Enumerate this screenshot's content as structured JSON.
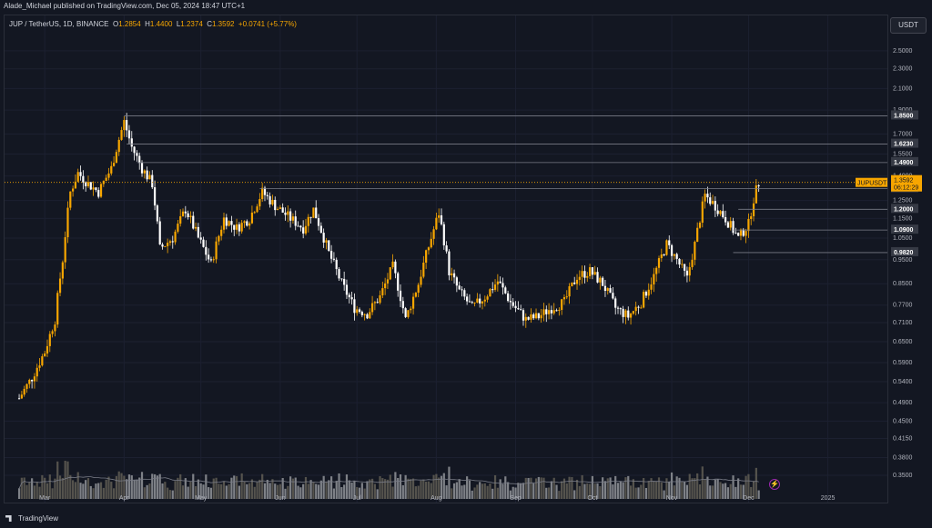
{
  "header": {
    "published": "Alade_Michael published on TradingView.com, Dec 05, 2024 18:47 UTC+1"
  },
  "symbol_bar": {
    "symbol": "JUP / TetherUS, 1D, BINANCE",
    "open_label": "O",
    "open": "1.2854",
    "high_label": "H",
    "high": "1.4400",
    "low_label": "L",
    "low": "1.2374",
    "close_label": "C",
    "close": "1.3592",
    "change": "+0.0741 (+5.77%)"
  },
  "axis": {
    "currency_button": "USDT"
  },
  "price_tag": {
    "symbol": "JUPUSDT",
    "price": "1.3592",
    "countdown": "06:12:29"
  },
  "footer": {
    "brand": "TradingView"
  },
  "colors": {
    "up": "#f7a600",
    "down": "#ffffff",
    "volume_up": "#5d5a52",
    "volume_down": "#8b8d92",
    "hline": "#787b86",
    "bg": "#131722"
  },
  "chart_data": {
    "type": "candlestick",
    "timeframe": "1D",
    "x_tick_labels": [
      "Mar",
      "Apr",
      "May",
      "Jun",
      "Jul",
      "Aug",
      "Sep",
      "Oct",
      "Nov",
      "Dec",
      "2025"
    ],
    "y_tick_labels": [
      "2.5000",
      "2.3000",
      "2.1000",
      "1.9000",
      "1.7000",
      "1.5500",
      "1.4000",
      "1.2500",
      "1.1500",
      "1.0500",
      "0.9500",
      "0.8500",
      "0.7700",
      "0.7100",
      "0.6500",
      "0.5900",
      "0.5400",
      "0.4900",
      "0.4500",
      "0.4150",
      "0.3800",
      "0.3500"
    ],
    "ylim": [
      0.33,
      2.8
    ],
    "y_scale": "log",
    "horizontal_levels": [
      "1.8500",
      "1.6230",
      "1.4900",
      "1.3200",
      "1.2000",
      "1.0900",
      "0.9820"
    ],
    "legend_position": "top-left",
    "grid": true,
    "price_path": [
      {
        "date": "2024-02-20",
        "price": 0.5
      },
      {
        "date": "2024-02-25",
        "price": 0.55
      },
      {
        "date": "2024-03-01",
        "price": 0.62
      },
      {
        "date": "2024-03-05",
        "price": 0.72
      },
      {
        "date": "2024-03-08",
        "price": 0.95
      },
      {
        "date": "2024-03-11",
        "price": 1.3
      },
      {
        "date": "2024-03-14",
        "price": 1.42
      },
      {
        "date": "2024-03-18",
        "price": 1.35
      },
      {
        "date": "2024-03-22",
        "price": 1.3
      },
      {
        "date": "2024-03-27",
        "price": 1.45
      },
      {
        "date": "2024-04-01",
        "price": 1.8
      },
      {
        "date": "2024-04-04",
        "price": 1.6
      },
      {
        "date": "2024-04-08",
        "price": 1.45
      },
      {
        "date": "2024-04-12",
        "price": 1.35
      },
      {
        "date": "2024-04-15",
        "price": 1.0
      },
      {
        "date": "2024-04-20",
        "price": 1.05
      },
      {
        "date": "2024-04-25",
        "price": 1.2
      },
      {
        "date": "2024-04-30",
        "price": 1.05
      },
      {
        "date": "2024-05-05",
        "price": 0.93
      },
      {
        "date": "2024-05-10",
        "price": 1.15
      },
      {
        "date": "2024-05-15",
        "price": 1.1
      },
      {
        "date": "2024-05-20",
        "price": 1.15
      },
      {
        "date": "2024-05-25",
        "price": 1.3
      },
      {
        "date": "2024-05-30",
        "price": 1.22
      },
      {
        "date": "2024-06-05",
        "price": 1.15
      },
      {
        "date": "2024-06-10",
        "price": 1.1
      },
      {
        "date": "2024-06-14",
        "price": 1.2
      },
      {
        "date": "2024-06-20",
        "price": 0.98
      },
      {
        "date": "2024-06-25",
        "price": 0.85
      },
      {
        "date": "2024-06-30",
        "price": 0.76
      },
      {
        "date": "2024-07-05",
        "price": 0.74
      },
      {
        "date": "2024-07-10",
        "price": 0.8
      },
      {
        "date": "2024-07-15",
        "price": 0.92
      },
      {
        "date": "2024-07-20",
        "price": 0.72
      },
      {
        "date": "2024-07-25",
        "price": 0.85
      },
      {
        "date": "2024-07-30",
        "price": 1.05
      },
      {
        "date": "2024-08-02",
        "price": 1.18
      },
      {
        "date": "2024-08-06",
        "price": 0.9
      },
      {
        "date": "2024-08-10",
        "price": 0.82
      },
      {
        "date": "2024-08-15",
        "price": 0.76
      },
      {
        "date": "2024-08-20",
        "price": 0.8
      },
      {
        "date": "2024-08-25",
        "price": 0.86
      },
      {
        "date": "2024-08-30",
        "price": 0.78
      },
      {
        "date": "2024-09-05",
        "price": 0.72
      },
      {
        "date": "2024-09-10",
        "price": 0.73
      },
      {
        "date": "2024-09-15",
        "price": 0.76
      },
      {
        "date": "2024-09-20",
        "price": 0.78
      },
      {
        "date": "2024-09-25",
        "price": 0.88
      },
      {
        "date": "2024-09-30",
        "price": 0.9
      },
      {
        "date": "2024-10-05",
        "price": 0.85
      },
      {
        "date": "2024-10-10",
        "price": 0.76
      },
      {
        "date": "2024-10-15",
        "price": 0.73
      },
      {
        "date": "2024-10-20",
        "price": 0.78
      },
      {
        "date": "2024-10-25",
        "price": 0.88
      },
      {
        "date": "2024-10-30",
        "price": 1.02
      },
      {
        "date": "2024-11-03",
        "price": 0.95
      },
      {
        "date": "2024-11-07",
        "price": 0.87
      },
      {
        "date": "2024-11-10",
        "price": 1.02
      },
      {
        "date": "2024-11-14",
        "price": 1.28
      },
      {
        "date": "2024-11-18",
        "price": 1.22
      },
      {
        "date": "2024-11-22",
        "price": 1.15
      },
      {
        "date": "2024-11-27",
        "price": 1.05
      },
      {
        "date": "2024-12-01",
        "price": 1.12
      },
      {
        "date": "2024-12-03",
        "price": 1.26
      },
      {
        "date": "2024-12-05",
        "price": 1.3592
      }
    ]
  }
}
